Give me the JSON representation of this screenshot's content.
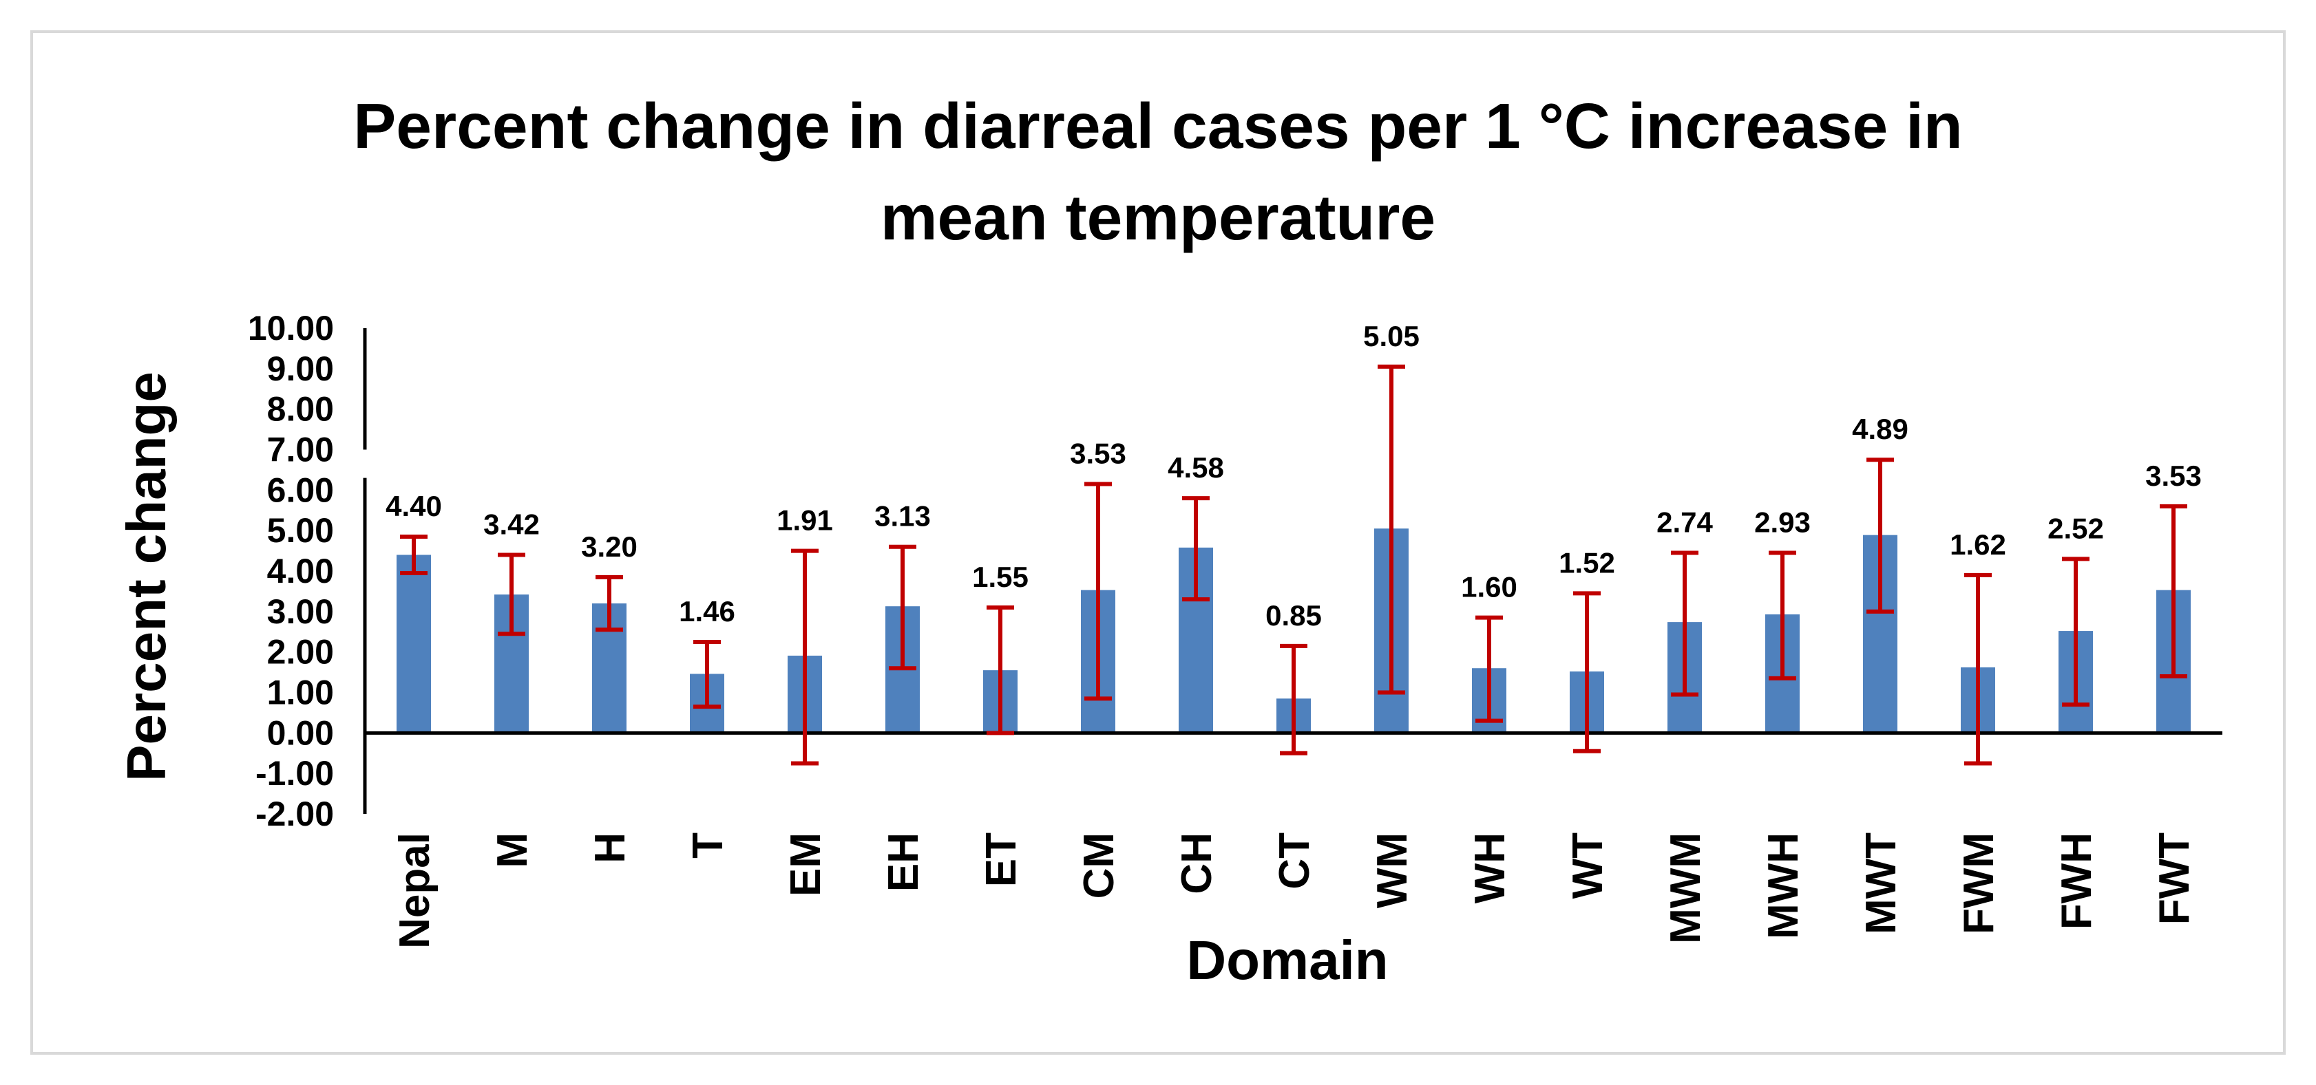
{
  "colors": {
    "bar": "#4f81bd",
    "error_bar": "#c00000",
    "axis": "#000000",
    "frame_border": "#d9d9d9"
  },
  "chart_data": {
    "type": "bar",
    "title_lines": [
      "Percent change in diarreal cases per 1 °C increase in",
      "mean temperature"
    ],
    "xlabel": "Domain",
    "ylabel": "Percent change",
    "ylim": [
      -2,
      10
    ],
    "ytick_values": [
      -2,
      -1,
      0,
      1,
      2,
      3,
      4,
      5,
      6,
      7,
      8,
      9,
      10
    ],
    "ytick_labels": [
      "-2.00",
      "-1.00",
      "0.00",
      "1.00",
      "2.00",
      "3.00",
      "4.00",
      "5.00",
      "6.00",
      "7.00",
      "8.00",
      "9.00",
      "10.00"
    ],
    "categories": [
      "Nepal",
      "M",
      "H",
      "T",
      "EM",
      "EH",
      "ET",
      "CM",
      "CH",
      "CT",
      "WM",
      "WH",
      "WT",
      "MWM",
      "MWH",
      "MWT",
      "FWM",
      "FWH",
      "FWT"
    ],
    "values": [
      4.4,
      3.42,
      3.2,
      1.46,
      1.91,
      3.13,
      1.55,
      3.53,
      4.58,
      0.85,
      5.05,
      1.6,
      1.52,
      2.74,
      2.93,
      4.89,
      1.62,
      2.52,
      3.53
    ],
    "value_labels": [
      "4.40",
      "3.42",
      "3.20",
      "1.46",
      "1.91",
      "3.13",
      "1.55",
      "3.53",
      "4.58",
      "0.85",
      "5.05",
      "1.60",
      "1.52",
      "2.74",
      "2.93",
      "4.89",
      "1.62",
      "2.52",
      "3.53"
    ],
    "ci_lower": [
      3.95,
      2.45,
      2.55,
      0.65,
      -0.75,
      1.6,
      0.0,
      0.85,
      3.3,
      -0.5,
      1.0,
      0.3,
      -0.45,
      0.95,
      1.35,
      3.0,
      -0.75,
      0.7,
      1.4
    ],
    "ci_upper": [
      4.85,
      4.4,
      3.85,
      2.25,
      4.5,
      4.6,
      3.1,
      6.15,
      5.8,
      2.15,
      9.05,
      2.85,
      3.45,
      4.45,
      4.45,
      6.75,
      3.9,
      4.3,
      5.6
    ],
    "grid": false,
    "legend": "none"
  }
}
